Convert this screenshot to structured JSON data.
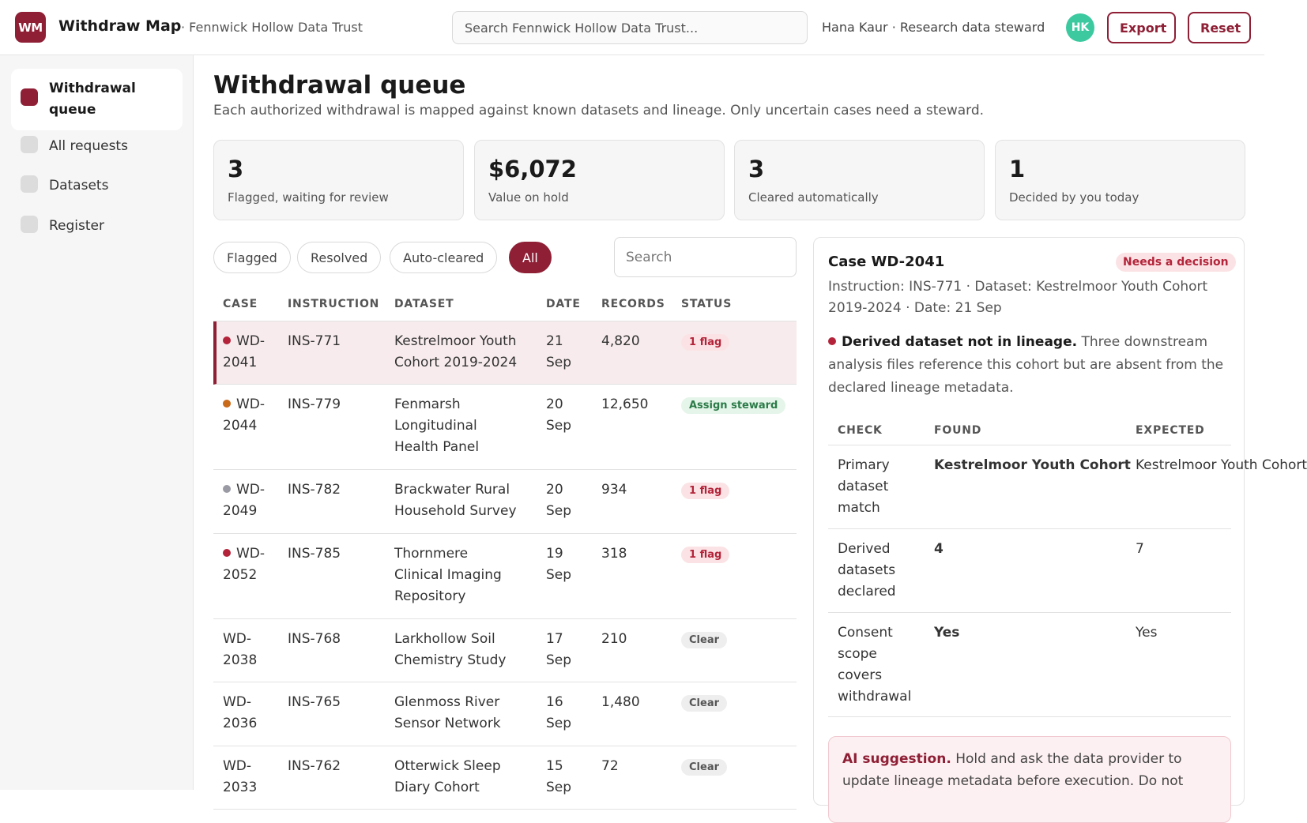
{
  "app": {
    "logo_text": "WM",
    "name": "Withdraw Map",
    "org": "· Fennwick Hollow Data Trust",
    "search_placeholder": "Search Fennwick Hollow Data Trust...",
    "user": "Hana Kaur · Research data steward",
    "avatar": "HK",
    "export_label": "Export",
    "reset_label": "Reset"
  },
  "sidebar": {
    "items": [
      {
        "label": "Withdrawal queue",
        "active": true
      },
      {
        "label": "All requests"
      },
      {
        "label": "Datasets"
      },
      {
        "label": "Register"
      }
    ]
  },
  "page": {
    "title": "Withdrawal queue",
    "subtitle": "Each authorized withdrawal is mapped against known datasets and lineage. Only uncertain cases need a steward."
  },
  "stats": [
    {
      "value": "3",
      "label": "Flagged, waiting for review"
    },
    {
      "value": "$6,072",
      "label": "Value on hold"
    },
    {
      "value": "3",
      "label": "Cleared automatically"
    },
    {
      "value": "1",
      "label": "Decided by you today"
    }
  ],
  "filters": {
    "chips": [
      "Flagged",
      "Resolved",
      "Auto-cleared",
      "All"
    ],
    "active": "All",
    "search_placeholder": "Search"
  },
  "table": {
    "headers": [
      "CASE",
      "INSTRUCTION",
      "DATASET",
      "DATE",
      "RECORDS",
      "STATUS"
    ],
    "rows": [
      {
        "case_a": "WD-",
        "case_b": "2041",
        "instr": "INS-771",
        "ds1": "Kestrelmoor Youth",
        "ds2": "Cohort 2019-2024",
        "ds3": "",
        "d1": "21",
        "d2": "Sep",
        "records": "4,820",
        "status": "1 flag",
        "kind": "flag",
        "dot": "#b3243a"
      },
      {
        "case_a": "WD-",
        "case_b": "2044",
        "instr": "INS-779",
        "ds1": "Fenmarsh",
        "ds2": "Longitudinal",
        "ds3": "Health Panel",
        "d1": "20",
        "d2": "Sep",
        "records": "12,650",
        "status": "Assign steward",
        "kind": "assign",
        "dot": "#c96a1b"
      },
      {
        "case_a": "WD-",
        "case_b": "2049",
        "instr": "INS-782",
        "ds1": "Brackwater Rural",
        "ds2": "Household Survey",
        "ds3": "",
        "d1": "20",
        "d2": "Sep",
        "records": "934",
        "status": "1 flag",
        "kind": "flag",
        "dot": "#9a9aa5"
      },
      {
        "case_a": "WD-",
        "case_b": "2052",
        "instr": "INS-785",
        "ds1": "Thornmere",
        "ds2": "Clinical Imaging",
        "ds3": "Repository",
        "d1": "19",
        "d2": "Sep",
        "records": "318",
        "status": "1 flag",
        "kind": "flag",
        "dot": "#b3243a"
      },
      {
        "case_a": "WD-",
        "case_b": "2038",
        "instr": "INS-768",
        "ds1": "Larkhollow Soil",
        "ds2": "Chemistry Study",
        "ds3": "",
        "d1": "17",
        "d2": "Sep",
        "records": "210",
        "status": "Clear",
        "kind": "clear",
        "dot": ""
      },
      {
        "case_a": "WD-",
        "case_b": "2036",
        "instr": "INS-765",
        "ds1": "Glenmoss River",
        "ds2": "Sensor Network",
        "ds3": "",
        "d1": "16",
        "d2": "Sep",
        "records": "1,480",
        "status": "Clear",
        "kind": "clear",
        "dot": ""
      },
      {
        "case_a": "WD-",
        "case_b": "2033",
        "instr": "INS-762",
        "ds1": "Otterwick Sleep",
        "ds2": "Diary Cohort",
        "ds3": "",
        "d1": "15",
        "d2": "Sep",
        "records": "72",
        "status": "Clear",
        "kind": "clear",
        "dot": ""
      }
    ]
  },
  "detail": {
    "title": "Case WD-2041",
    "badge": "Needs a decision",
    "meta": "Instruction: INS-771 · Dataset: Kestrelmoor Youth Cohort 2019-2024 · Date: 21 Sep",
    "finding_head": "Derived dataset not in lineage.",
    "finding_body": "Three downstream analysis files reference this cohort but are absent from the declared lineage metadata.",
    "check_headers": [
      "CHECK",
      "FOUND",
      "EXPECTED"
    ],
    "checks": [
      {
        "c1": "Primary",
        "c2": "dataset",
        "c3": "match",
        "c4": "",
        "found": "Kestrelmoor Youth Cohort",
        "found_class": "green",
        "expected": "Kestrelmoor Youth Cohort"
      },
      {
        "c1": "Derived",
        "c2": "datasets",
        "c3": "declared",
        "c4": "",
        "found": "4",
        "found_class": "red",
        "expected": "7"
      },
      {
        "c1": "Consent",
        "c2": "scope",
        "c3": "covers",
        "c4": "withdrawal",
        "found": "Yes",
        "found_class": "green",
        "expected": "Yes"
      }
    ],
    "ai_head": "AI suggestion.",
    "ai_body": "Hold and ask the data provider to update lineage metadata before execution. Do not"
  }
}
